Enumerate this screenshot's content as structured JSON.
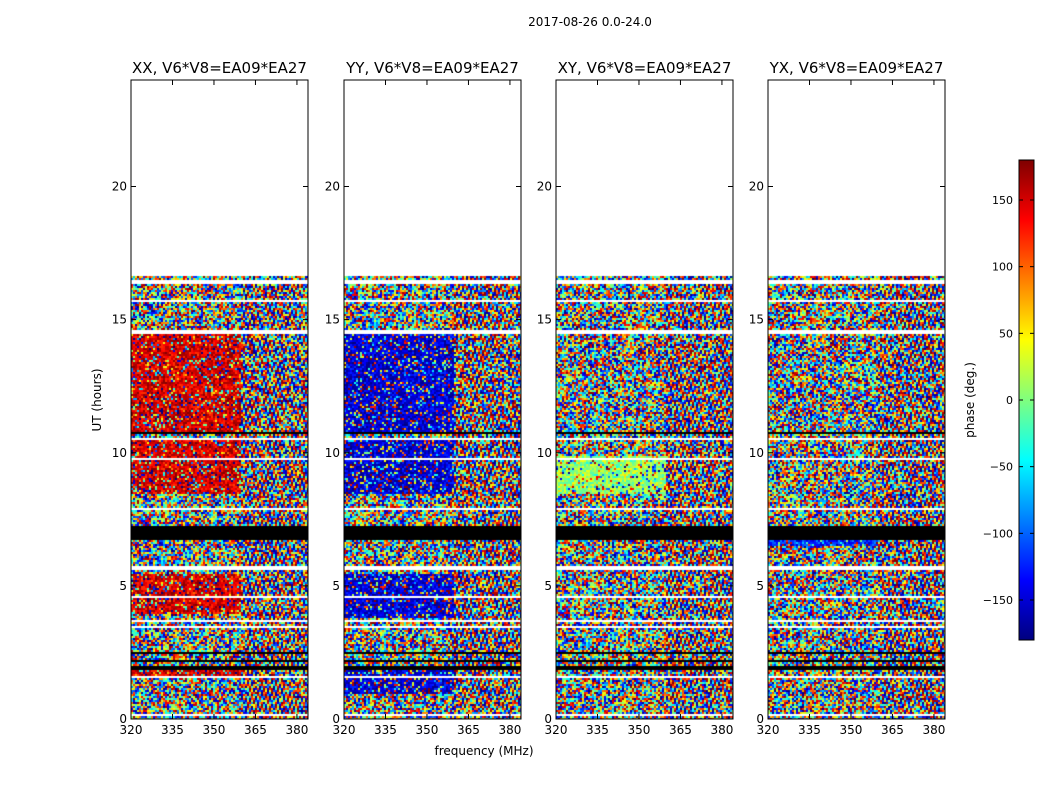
{
  "chart_data": {
    "type": "heatmap",
    "suptitle": "2017-08-26 0.0-24.0",
    "xlabel": "frequency (MHz)",
    "ylabel": "UT (hours)",
    "xlim": [
      320,
      384
    ],
    "ylim": [
      0,
      24
    ],
    "x_ticks": [
      320,
      335,
      350,
      365,
      380
    ],
    "y_ticks": [
      0,
      5,
      10,
      15,
      20
    ],
    "colorbar": {
      "label": "phase (deg.)",
      "range": [
        -180,
        180
      ],
      "ticks": [
        -150,
        -100,
        -50,
        0,
        50,
        100,
        150
      ],
      "colormap": [
        "#00007f",
        "#0000ff",
        "#007fff",
        "#00ffff",
        "#7fff7f",
        "#ffff00",
        "#ff7f00",
        "#ff0000",
        "#7f0000"
      ]
    },
    "data_extent_hours": [
      0,
      16.7
    ],
    "gap_bands_hours": [
      [
        0.15,
        0.25
      ],
      [
        1.55,
        1.65
      ],
      [
        3.45,
        3.55
      ],
      [
        3.65,
        3.75
      ],
      [
        4.55,
        4.65
      ],
      [
        5.65,
        5.75
      ],
      [
        7.9,
        8.0
      ],
      [
        8.55,
        8.6
      ],
      [
        9.75,
        9.85
      ],
      [
        10.55,
        10.6
      ],
      [
        14.5,
        14.65
      ],
      [
        15.7,
        15.8
      ],
      [
        16.4,
        16.5
      ]
    ],
    "black_bands_hours": [
      [
        6.75,
        7.3
      ],
      [
        1.9,
        2.0
      ],
      [
        2.2,
        2.25
      ],
      [
        2.5,
        2.55
      ],
      [
        10.75,
        10.85
      ]
    ],
    "panels": [
      {
        "title": "XX, V6*V8=EA09*EA27",
        "dominant_phase_deg": 150,
        "dominant_hours": [
          [
            8.5,
            10.5
          ],
          [
            10.8,
            14.5
          ],
          [
            4.0,
            5.5
          ],
          [
            1.6,
            2.0
          ]
        ]
      },
      {
        "title": "YY, V6*V8=EA09*EA27",
        "dominant_phase_deg": -150,
        "dominant_hours": [
          [
            8.5,
            10.5
          ],
          [
            10.8,
            14.5
          ],
          [
            3.8,
            5.5
          ],
          [
            1.0,
            2.0
          ]
        ]
      },
      {
        "title": "XY, V6*V8=EA09*EA27",
        "dominant_phase_deg": 10,
        "dominant_hours": [
          [
            8.5,
            9.9
          ]
        ]
      },
      {
        "title": "YX, V6*V8=EA09*EA27",
        "dominant_phase_deg": -120,
        "dominant_hours": [
          [
            6.5,
            7.0
          ]
        ]
      }
    ]
  }
}
